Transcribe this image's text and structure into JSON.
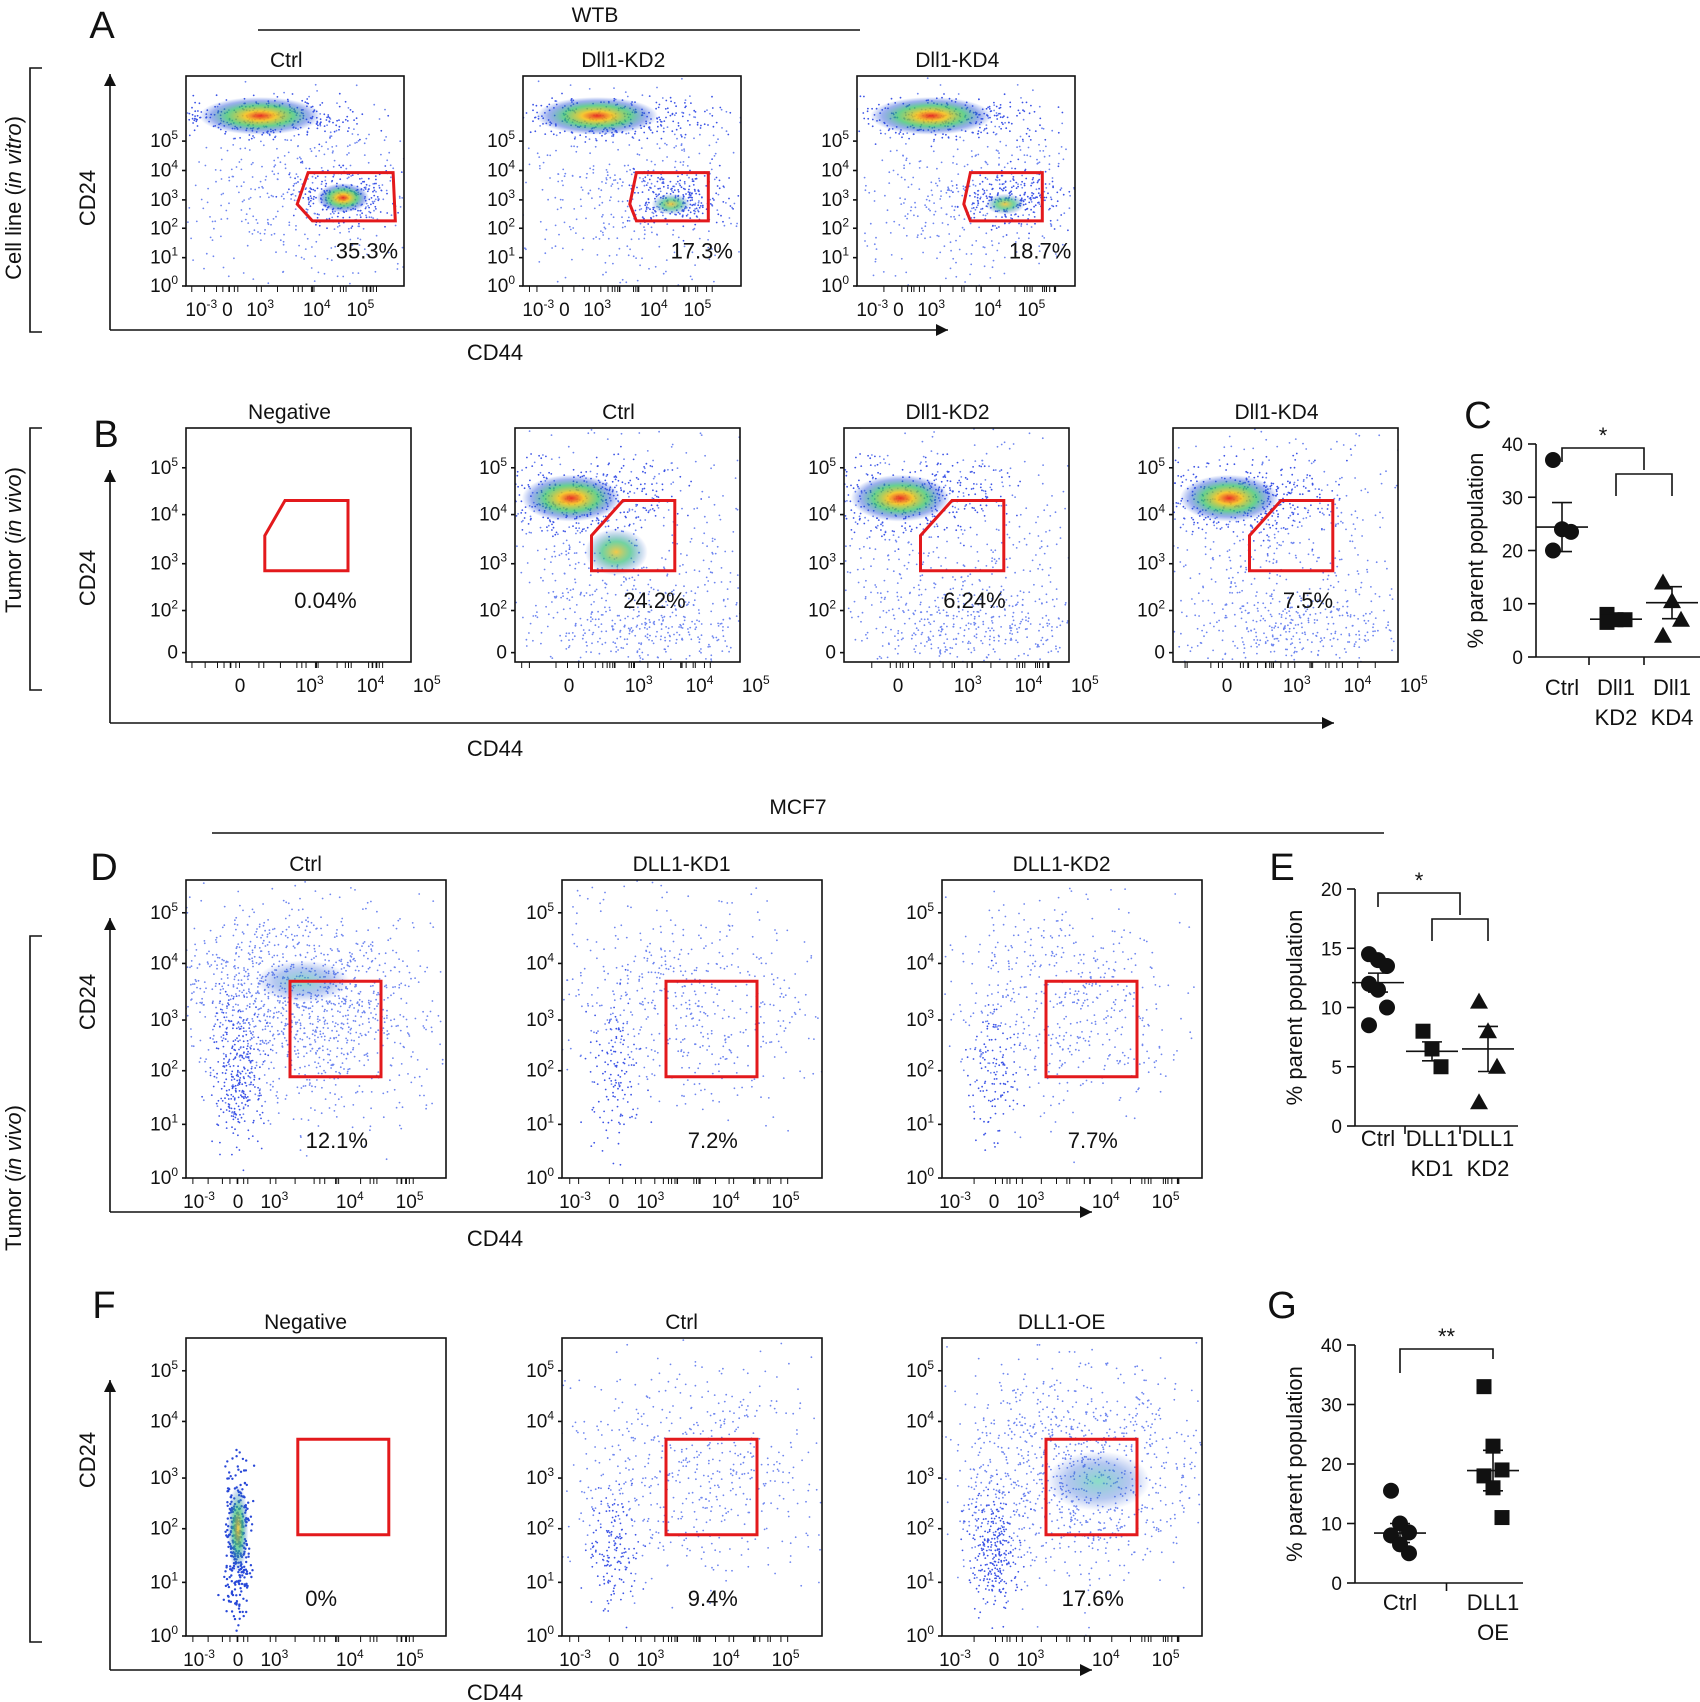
{
  "figure": {
    "panel_letters": [
      "A",
      "B",
      "C",
      "D",
      "E",
      "F",
      "G"
    ],
    "group_titles": {
      "wtb": "WTB",
      "mcf7": "MCF7"
    },
    "side_labels": {
      "cell_line": {
        "main": "Cell line (",
        "italic": "in vitro",
        "end": ")"
      },
      "tumor_b": {
        "main": "Tumor (",
        "italic": "in vivo",
        "end": ")"
      },
      "tumor_df": {
        "main": "Tumor (",
        "italic": "in vivo",
        "end": ")"
      }
    },
    "axis_titles": {
      "x": "CD44",
      "y": "CD24"
    }
  },
  "chart_data": [
    {
      "type": "scatter",
      "panel": "A",
      "subtype": "flow-cytometry density plot",
      "x_axis": {
        "label": "CD44",
        "ticks": [
          "10-3",
          "0",
          "103",
          "104",
          "105"
        ]
      },
      "y_axis": {
        "label": "CD24",
        "ticks": [
          "100",
          "101",
          "102",
          "103",
          "104",
          "105"
        ]
      },
      "plots": [
        {
          "title": "Ctrl",
          "gate_percent": "35.3%"
        },
        {
          "title": "Dll1-KD2",
          "gate_percent": "17.3%"
        },
        {
          "title": "Dll1-KD4",
          "gate_percent": "18.7%"
        }
      ]
    },
    {
      "type": "scatter",
      "panel": "B",
      "subtype": "flow-cytometry density plot",
      "x_axis": {
        "label": "CD44",
        "ticks": [
          "0",
          "103",
          "104",
          "105"
        ]
      },
      "y_axis": {
        "label": "CD24",
        "ticks": [
          "0",
          "102",
          "103",
          "104",
          "105"
        ]
      },
      "plots": [
        {
          "title": "Negative",
          "gate_percent": "0.04%"
        },
        {
          "title": "Ctrl",
          "gate_percent": "24.2%"
        },
        {
          "title": "Dll1-KD2",
          "gate_percent": "6.24%"
        },
        {
          "title": "Dll1-KD4",
          "gate_percent": "7.5%"
        }
      ]
    },
    {
      "type": "scatter",
      "panel": "C",
      "ylabel": "% parent population",
      "ylim": [
        0,
        40
      ],
      "yticks": [
        0,
        10,
        20,
        30,
        40
      ],
      "significance": "*",
      "groups": [
        {
          "label": "Ctrl",
          "label2": "",
          "marker": "circle",
          "values": [
            37,
            24,
            23.5,
            20
          ],
          "mean": 24.4,
          "sem": 4.6
        },
        {
          "label": "Dll1",
          "label2": "KD2",
          "marker": "square",
          "values": [
            8,
            7,
            7,
            6.5
          ],
          "mean": 7.1,
          "sem": 0.4
        },
        {
          "label": "Dll1",
          "label2": "KD4",
          "marker": "triangle",
          "values": [
            14,
            10.5,
            7,
            4
          ],
          "mean": 10.2,
          "sem": 3
        }
      ]
    },
    {
      "type": "scatter",
      "panel": "D",
      "subtype": "flow-cytometry density plot",
      "x_axis": {
        "label": "CD44",
        "ticks": [
          "10-3",
          "0",
          "103",
          "104",
          "105"
        ]
      },
      "y_axis": {
        "label": "CD24",
        "ticks": [
          "100",
          "101",
          "102",
          "103",
          "104",
          "105"
        ]
      },
      "plots": [
        {
          "title": "Ctrl",
          "gate_percent": "12.1%"
        },
        {
          "title": "DLL1-KD1",
          "gate_percent": "7.2%"
        },
        {
          "title": "DLL1-KD2",
          "gate_percent": "7.7%"
        }
      ]
    },
    {
      "type": "scatter",
      "panel": "E",
      "ylabel": "% parent population",
      "ylim": [
        0,
        20
      ],
      "yticks": [
        0,
        5,
        10,
        15,
        20
      ],
      "significance": "*",
      "groups": [
        {
          "label": "Ctrl",
          "label2": "",
          "marker": "circle",
          "values": [
            14.5,
            14,
            13.5,
            12,
            11.5,
            10,
            8.5
          ],
          "mean": 12.1,
          "sem": 0.8
        },
        {
          "label": "DLL1",
          "label2": "KD1",
          "marker": "square",
          "values": [
            8,
            6.5,
            5
          ],
          "mean": 6.3,
          "sem": 0.8
        },
        {
          "label": "DLL1",
          "label2": "KD2",
          "marker": "triangle",
          "values": [
            10.5,
            8,
            5,
            2
          ],
          "mean": 6.5,
          "sem": 1.9
        }
      ]
    },
    {
      "type": "scatter",
      "panel": "F",
      "subtype": "flow-cytometry density plot",
      "x_axis": {
        "label": "CD44",
        "ticks": [
          "10-3",
          "0",
          "103",
          "104",
          "105"
        ]
      },
      "y_axis": {
        "label": "CD24",
        "ticks": [
          "100",
          "101",
          "102",
          "103",
          "104",
          "105"
        ]
      },
      "plots": [
        {
          "title": "Negative",
          "gate_percent": "0%"
        },
        {
          "title": "Ctrl",
          "gate_percent": "9.4%"
        },
        {
          "title": "DLL1-OE",
          "gate_percent": "17.6%"
        }
      ]
    },
    {
      "type": "scatter",
      "panel": "G",
      "ylabel": "% parent population",
      "ylim": [
        0,
        40
      ],
      "yticks": [
        0,
        10,
        20,
        30,
        40
      ],
      "significance": "**",
      "groups": [
        {
          "label": "Ctrl",
          "label2": "",
          "marker": "circle",
          "values": [
            15.5,
            10,
            8.5,
            8,
            6.5,
            5
          ],
          "mean": 8.4,
          "sem": 1.6
        },
        {
          "label": "DLL1",
          "label2": "OE",
          "marker": "square",
          "values": [
            33,
            23,
            19,
            18,
            16,
            11
          ],
          "mean": 18.9,
          "sem": 3.4
        }
      ]
    }
  ]
}
